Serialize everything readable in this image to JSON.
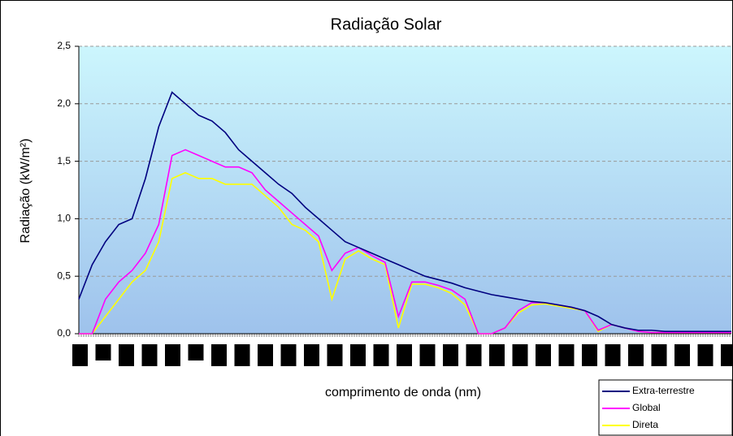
{
  "chart_data": {
    "type": "line",
    "title": "Radiação Solar",
    "y_label": "Radiação (kW/m²)",
    "x_label": "comprimento de onda (nm)",
    "categories": [
      null,
      null,
      null,
      null,
      null,
      null,
      null,
      null,
      null,
      null,
      null,
      null,
      null,
      null,
      null,
      null,
      null,
      null,
      null,
      null,
      null,
      null,
      null,
      null,
      null,
      null,
      null,
      null,
      null,
      null,
      null,
      null,
      null,
      null,
      null,
      null,
      null,
      null,
      null,
      null,
      null,
      null,
      null,
      null,
      null,
      null,
      null,
      null,
      null,
      null
    ],
    "series": [
      {
        "name": "Extra-terrestre",
        "color": "#000080",
        "values": [
          0.3,
          0.6,
          0.8,
          0.95,
          1.0,
          1.35,
          1.8,
          2.1,
          2.0,
          1.9,
          1.85,
          1.75,
          1.6,
          1.5,
          1.4,
          1.3,
          1.22,
          1.1,
          1.0,
          0.9,
          0.8,
          0.75,
          0.7,
          0.65,
          0.6,
          0.55,
          0.5,
          0.47,
          0.44,
          0.4,
          0.37,
          0.34,
          0.32,
          0.3,
          0.28,
          0.27,
          0.25,
          0.23,
          0.2,
          0.15,
          0.08,
          0.05,
          0.03,
          0.03,
          0.02,
          0.02,
          0.02,
          0.02,
          0.02,
          0.02
        ]
      },
      {
        "name": "Global",
        "color": "#ff00ff",
        "values": [
          0,
          0,
          0.3,
          0.45,
          0.55,
          0.7,
          0.95,
          1.55,
          1.6,
          1.55,
          1.5,
          1.45,
          1.45,
          1.4,
          1.25,
          1.15,
          1.05,
          0.95,
          0.85,
          0.55,
          0.7,
          0.75,
          0.68,
          0.62,
          0.15,
          0.45,
          0.45,
          0.42,
          0.38,
          0.3,
          0,
          0,
          0.05,
          0.2,
          0.27,
          0.27,
          0.25,
          0.23,
          0.2,
          0.03,
          0.08,
          0.05,
          0.02,
          0.01,
          0.01,
          0.01,
          0.01,
          0.01,
          0.01,
          0.01
        ]
      },
      {
        "name": "Direta",
        "color": "#ffff00",
        "values": [
          0,
          0,
          0.15,
          0.3,
          0.45,
          0.55,
          0.8,
          1.35,
          1.4,
          1.35,
          1.35,
          1.3,
          1.3,
          1.3,
          1.2,
          1.1,
          0.95,
          0.9,
          0.8,
          0.3,
          0.65,
          0.72,
          0.65,
          0.6,
          0.05,
          0.43,
          0.43,
          0.4,
          0.35,
          0.25,
          0,
          0,
          0.05,
          0.18,
          0.25,
          0.26,
          0.24,
          0.22,
          0.2,
          0.02,
          0.08,
          0.05,
          0.02,
          0.01,
          0.01,
          0.01,
          0.01,
          0.01,
          0.01,
          0.01
        ]
      }
    ],
    "ylim": [
      0,
      2.5
    ],
    "yticks": [
      {
        "value": 0,
        "label": "0,0"
      },
      {
        "value": 0.5,
        "label": "0,5"
      },
      {
        "value": 1,
        "label": "1,0"
      },
      {
        "value": 1.5,
        "label": "1,5"
      },
      {
        "value": 2,
        "label": "2,0"
      },
      {
        "value": 2.5,
        "label": "2,5"
      }
    ],
    "grid": true,
    "legend": "lower right"
  }
}
